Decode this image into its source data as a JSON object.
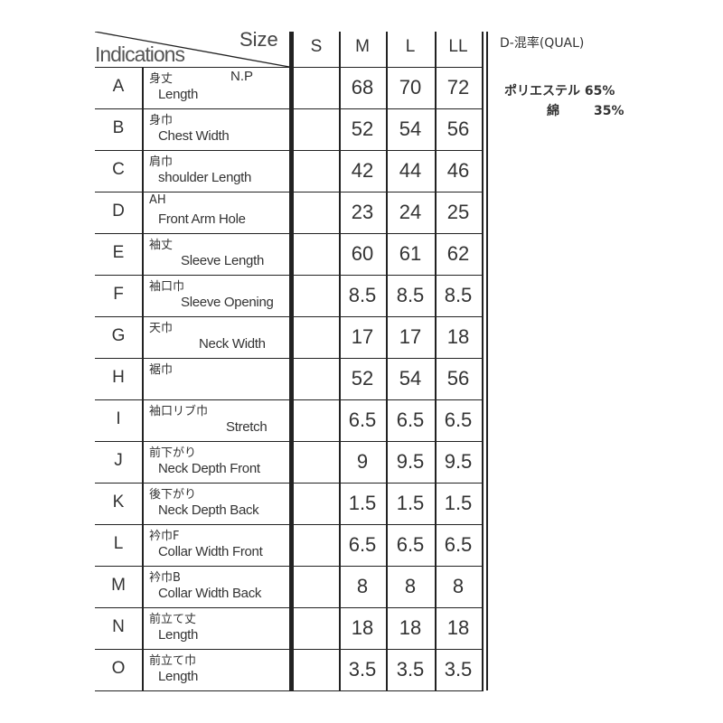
{
  "header": {
    "indications": "Indications",
    "size": "Size",
    "sizes": [
      "S",
      "M",
      "L",
      "LL"
    ]
  },
  "rows": [
    {
      "letter": "A",
      "jp": "身丈",
      "note": "N.P",
      "en": "Length",
      "values": [
        "",
        "68",
        "70",
        "72"
      ]
    },
    {
      "letter": "B",
      "jp": "身巾",
      "en": "Chest Width",
      "values": [
        "",
        "52",
        "54",
        "56"
      ]
    },
    {
      "letter": "C",
      "jp": "肩巾",
      "en": "shoulder Length",
      "values": [
        "",
        "42",
        "44",
        "46"
      ]
    },
    {
      "letter": "D",
      "jp": "AH",
      "en": "Front Arm Hole",
      "values": [
        "",
        "23",
        "24",
        "25"
      ]
    },
    {
      "letter": "E",
      "jp": "袖丈",
      "en": "Sleeve Length",
      "values": [
        "",
        "60",
        "61",
        "62"
      ]
    },
    {
      "letter": "F",
      "jp": "袖口巾",
      "en": "Sleeve Opening",
      "values": [
        "",
        "8.5",
        "8.5",
        "8.5"
      ]
    },
    {
      "letter": "G",
      "jp": "天巾",
      "en": "Neck Width",
      "values": [
        "",
        "17",
        "17",
        "18"
      ]
    },
    {
      "letter": "H",
      "jp": "裾巾",
      "en": "",
      "values": [
        "",
        "52",
        "54",
        "56"
      ]
    },
    {
      "letter": "I",
      "jp": "袖口リブ巾",
      "en": "Stretch",
      "values": [
        "",
        "6.5",
        "6.5",
        "6.5"
      ]
    },
    {
      "letter": "J",
      "jp": "前下がり",
      "en": "Neck Depth Front",
      "values": [
        "",
        "9",
        "9.5",
        "9.5"
      ]
    },
    {
      "letter": "K",
      "jp": "後下がり",
      "en": "Neck Depth Back",
      "values": [
        "",
        "1.5",
        "1.5",
        "1.5"
      ]
    },
    {
      "letter": "L",
      "jp": "衿巾F",
      "en": "Collar Width Front",
      "values": [
        "",
        "6.5",
        "6.5",
        "6.5"
      ]
    },
    {
      "letter": "M",
      "jp": "衿巾B",
      "en": "Collar Width Back",
      "values": [
        "",
        "8",
        "8",
        "8"
      ]
    },
    {
      "letter": "N",
      "jp": "前立て丈",
      "en": "Length",
      "values": [
        "",
        "18",
        "18",
        "18"
      ]
    },
    {
      "letter": "O",
      "jp": "前立て巾",
      "en": "Length",
      "values": [
        "",
        "3.5",
        "3.5",
        "3.5"
      ]
    }
  ],
  "material": {
    "title": "D-混率(QUAL)",
    "lines": [
      {
        "name": "ポリエステル",
        "pct": "65%"
      },
      {
        "name": "綿",
        "pct": "35%"
      }
    ]
  }
}
